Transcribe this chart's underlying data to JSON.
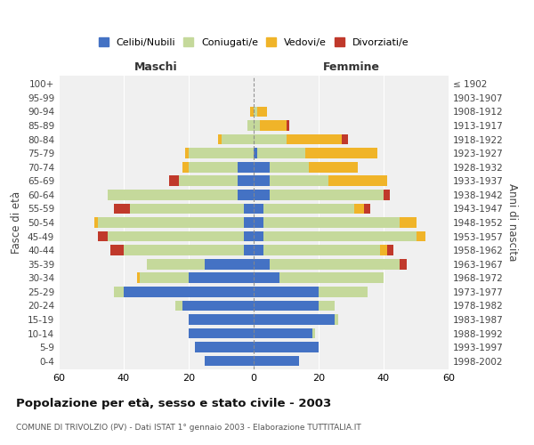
{
  "age_groups": [
    "0-4",
    "5-9",
    "10-14",
    "15-19",
    "20-24",
    "25-29",
    "30-34",
    "35-39",
    "40-44",
    "45-49",
    "50-54",
    "55-59",
    "60-64",
    "65-69",
    "70-74",
    "75-79",
    "80-84",
    "85-89",
    "90-94",
    "95-99",
    "100+"
  ],
  "birth_years": [
    "1998-2002",
    "1993-1997",
    "1988-1992",
    "1983-1987",
    "1978-1982",
    "1973-1977",
    "1968-1972",
    "1963-1967",
    "1958-1962",
    "1953-1957",
    "1948-1952",
    "1943-1947",
    "1938-1942",
    "1933-1937",
    "1928-1932",
    "1923-1927",
    "1918-1922",
    "1913-1917",
    "1908-1912",
    "1903-1907",
    "≤ 1902"
  ],
  "maschi": {
    "celibi": [
      15,
      18,
      20,
      20,
      22,
      40,
      20,
      15,
      3,
      3,
      3,
      3,
      5,
      5,
      5,
      0,
      0,
      0,
      0,
      0,
      0
    ],
    "coniugati": [
      0,
      0,
      0,
      0,
      2,
      3,
      15,
      18,
      37,
      42,
      45,
      35,
      40,
      18,
      15,
      20,
      10,
      2,
      0,
      0,
      0
    ],
    "vedovi": [
      0,
      0,
      0,
      0,
      0,
      0,
      1,
      0,
      0,
      0,
      1,
      0,
      0,
      0,
      2,
      1,
      1,
      0,
      1,
      0,
      0
    ],
    "divorziati": [
      0,
      0,
      0,
      0,
      0,
      0,
      0,
      0,
      4,
      3,
      0,
      5,
      0,
      3,
      0,
      0,
      0,
      0,
      0,
      0,
      0
    ]
  },
  "femmine": {
    "nubili": [
      14,
      20,
      18,
      25,
      20,
      20,
      8,
      5,
      3,
      3,
      3,
      3,
      5,
      5,
      5,
      1,
      0,
      0,
      0,
      0,
      0
    ],
    "coniugate": [
      0,
      0,
      1,
      1,
      5,
      15,
      32,
      40,
      36,
      47,
      42,
      28,
      35,
      18,
      12,
      15,
      10,
      2,
      1,
      0,
      0
    ],
    "vedove": [
      0,
      0,
      0,
      0,
      0,
      0,
      0,
      0,
      2,
      3,
      5,
      3,
      0,
      18,
      15,
      22,
      17,
      8,
      3,
      0,
      0
    ],
    "divorziate": [
      0,
      0,
      0,
      0,
      0,
      0,
      0,
      2,
      2,
      0,
      0,
      2,
      2,
      0,
      0,
      0,
      2,
      1,
      0,
      0,
      0
    ]
  },
  "colors": {
    "celibi_nubili": "#4472c4",
    "coniugati": "#c5d99b",
    "vedovi": "#f0b429",
    "divorziati": "#c0392b"
  },
  "xlim": 60,
  "title": "Popolazione per età, sesso e stato civile - 2003",
  "subtitle": "COMUNE DI TRIVOLZIO (PV) - Dati ISTAT 1° gennaio 2003 - Elaborazione TUTTITALIA.IT",
  "ylabel": "Fasce di età",
  "ylabel_right": "Anni di nascita",
  "xlabel_maschi": "Maschi",
  "xlabel_femmine": "Femmine",
  "legend_labels": [
    "Celibi/Nubili",
    "Coniugati/e",
    "Vedovi/e",
    "Divorziati/e"
  ],
  "background_color": "#ffffff",
  "bar_height": 0.75
}
